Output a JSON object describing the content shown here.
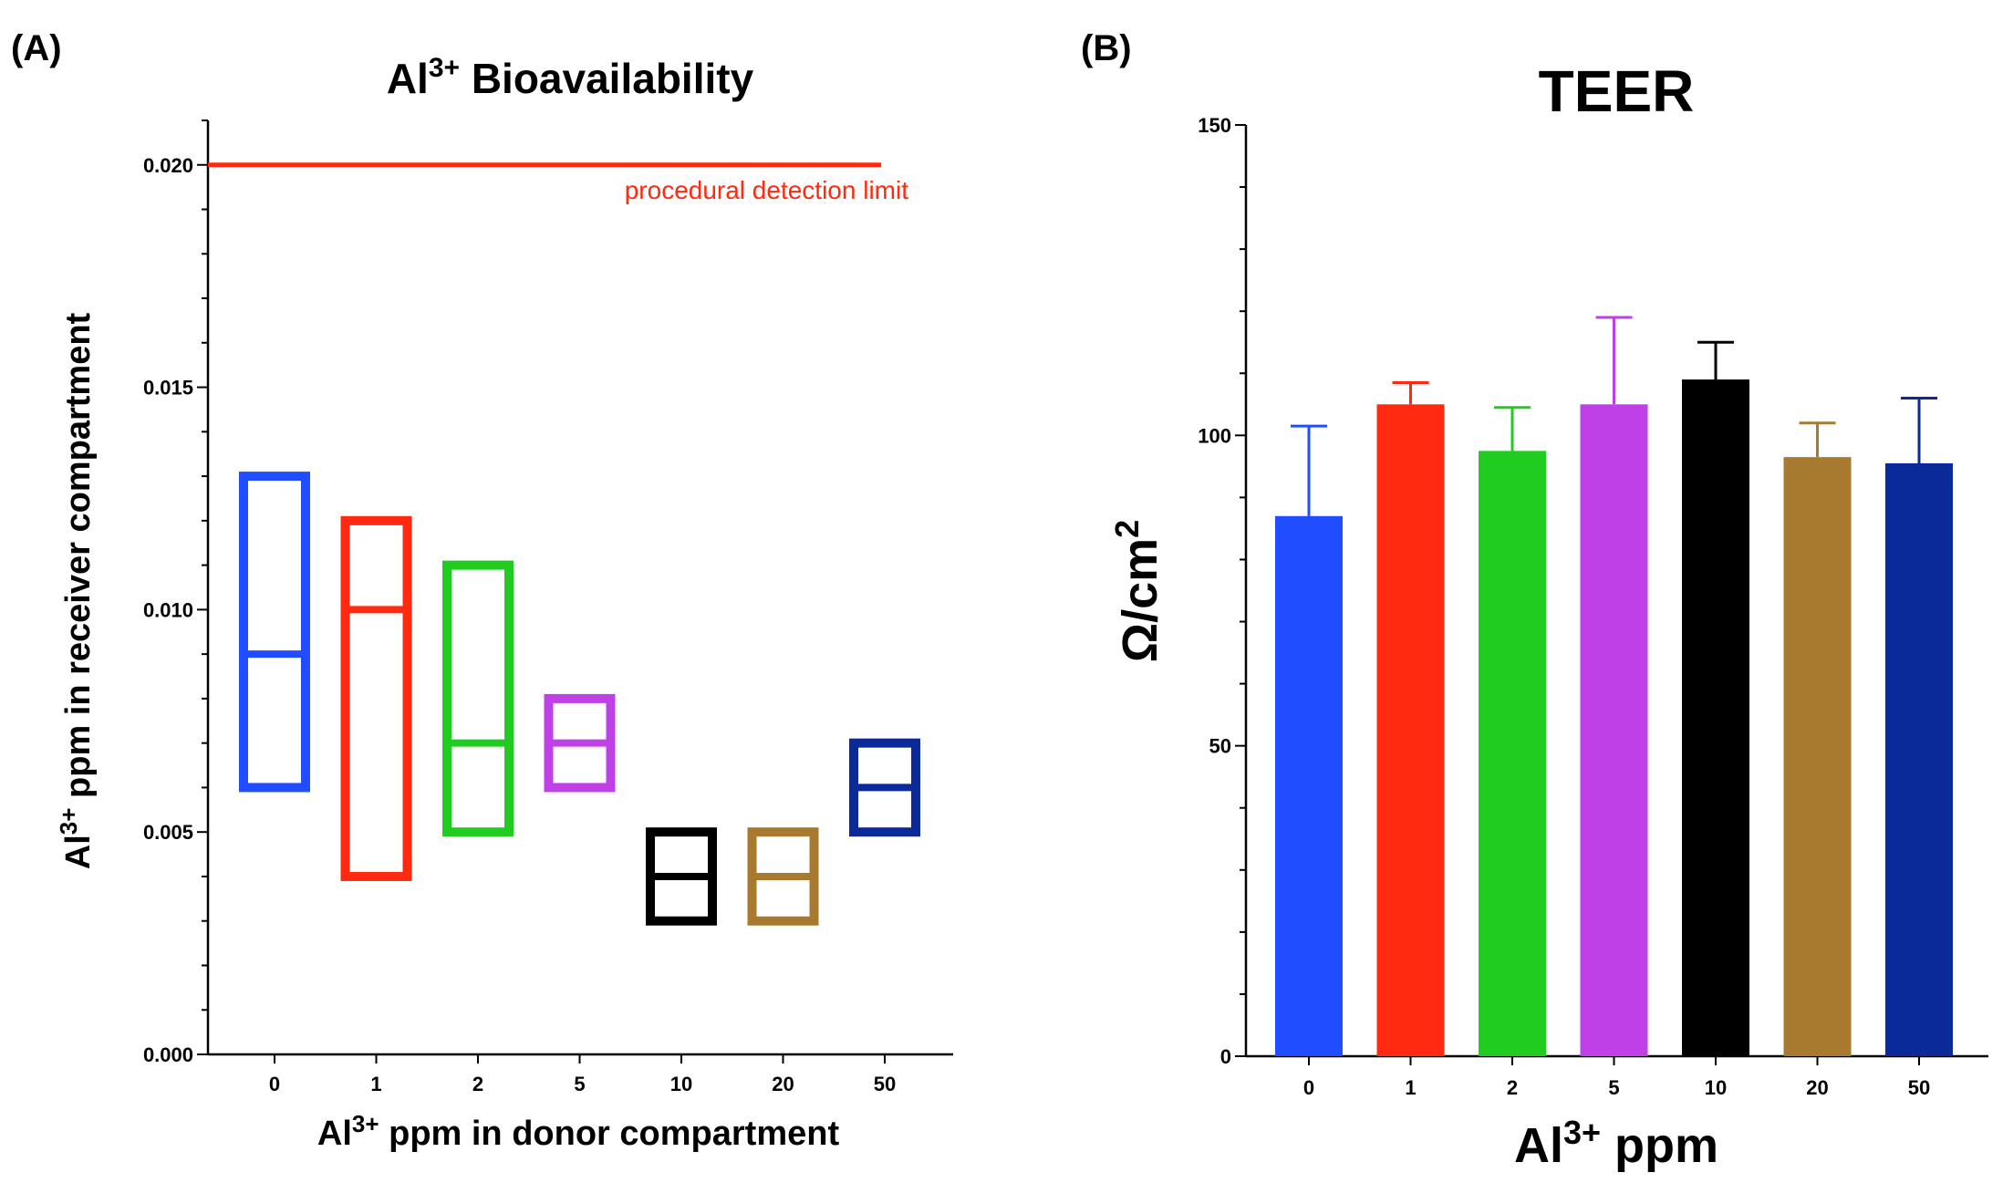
{
  "chart_data": [
    {
      "panel": "(A)",
      "type": "box",
      "title": "Al",
      "title_sup": "3+",
      "title_rest": " Bioavailability",
      "xlabel": "Al",
      "xlabel_sup": "3+",
      "xlabel_rest": " ppm in donor compartment",
      "ylabel": "Al",
      "ylabel_sup": "3+",
      "ylabel_rest": " ppm in receiver compartment",
      "categories": [
        "0",
        "1",
        "2",
        "5",
        "10",
        "20",
        "50"
      ],
      "ylim": [
        0,
        0.021
      ],
      "yticks": [
        "0.000",
        "0.005",
        "0.010",
        "0.015",
        "0.020"
      ],
      "ytick_values": [
        0,
        0.005,
        0.01,
        0.015,
        0.02
      ],
      "series": [
        {
          "name": "0",
          "min": 0.006,
          "max": 0.013,
          "median": 0.009,
          "color": "#1f4dff"
        },
        {
          "name": "1",
          "min": 0.004,
          "max": 0.012,
          "median": 0.01,
          "color": "#ff2a10"
        },
        {
          "name": "2",
          "min": 0.005,
          "max": 0.011,
          "median": 0.007,
          "color": "#20cc20"
        },
        {
          "name": "5",
          "min": 0.006,
          "max": 0.008,
          "median": 0.007,
          "color": "#c040e8"
        },
        {
          "name": "10",
          "min": 0.003,
          "max": 0.005,
          "median": 0.004,
          "color": "#000000"
        },
        {
          "name": "20",
          "min": 0.003,
          "max": 0.005,
          "median": 0.004,
          "color": "#a87a30"
        },
        {
          "name": "50",
          "min": 0.005,
          "max": 0.007,
          "median": 0.006,
          "color": "#0a2a9a"
        }
      ],
      "reference_line": {
        "value": 0.02,
        "label": "procedural detection limit",
        "color": "#ff2a10"
      }
    },
    {
      "panel": "(B)",
      "type": "bar",
      "title": "TEER",
      "xlabel": "Al",
      "xlabel_sup": "3+",
      "xlabel_rest": " ppm",
      "ylabel": "Ω/cm",
      "ylabel_sup": "2",
      "categories": [
        "0",
        "1",
        "2",
        "5",
        "10",
        "20",
        "50"
      ],
      "ylim": [
        0,
        150
      ],
      "yticks": [
        "0",
        "50",
        "100",
        "150"
      ],
      "ytick_values": [
        0,
        50,
        100,
        150
      ],
      "values": [
        87,
        105,
        97.5,
        105,
        109,
        96.5,
        95.5
      ],
      "errors": [
        14.5,
        3.5,
        7,
        14,
        6,
        5.5,
        10.5
      ],
      "colors": [
        "#1f4dff",
        "#ff2a10",
        "#20cc20",
        "#c040e8",
        "#000000",
        "#a87a30",
        "#0a2a9a"
      ]
    }
  ]
}
